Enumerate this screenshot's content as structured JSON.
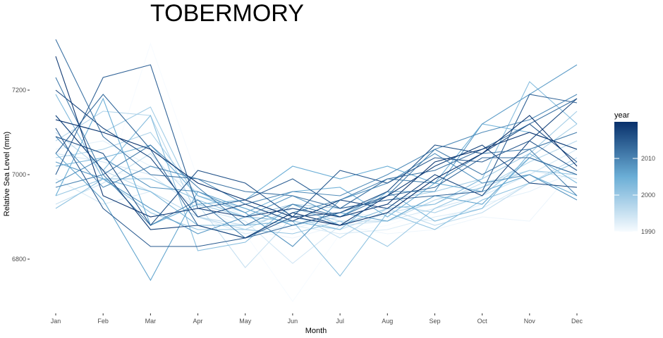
{
  "chart_data": {
    "type": "line",
    "title": "TOBERMORY",
    "xlabel": "Month",
    "ylabel": "Relative Sea Level (mm)",
    "categories": [
      "Jan",
      "Feb",
      "Mar",
      "Apr",
      "May",
      "Jun",
      "Jul",
      "Aug",
      "Sep",
      "Oct",
      "Nov",
      "Dec"
    ],
    "y_ticks": [
      6800,
      7000,
      7200
    ],
    "y_tick_labels": [
      "6800",
      "7000",
      "7200"
    ],
    "ylim": [
      6680,
      7330
    ],
    "grid": false,
    "legend": {
      "title": "year",
      "position": "right",
      "type": "colorbar",
      "range": [
        1990,
        2020
      ],
      "ticks": [
        1990,
        2000,
        2010
      ],
      "tick_labels": [
        "1990",
        "2000",
        "2010"
      ],
      "low_color": "#f7fbff",
      "high_color": "#08306b"
    },
    "series": [
      {
        "year": 1990,
        "values": [
          7000,
          6960,
          7310,
          6990,
          6860,
          6700,
          6860,
          6880,
          6920,
          6940,
          6970,
          7000
        ]
      },
      {
        "year": 1991,
        "values": [
          7020,
          7010,
          6990,
          6930,
          6870,
          6850,
          6880,
          6860,
          6870,
          6900,
          6890,
          7020
        ]
      },
      {
        "year": 1992,
        "values": [
          7060,
          7080,
          7020,
          6960,
          6900,
          6870,
          6910,
          6900,
          6890,
          6930,
          6960,
          7010
        ]
      },
      {
        "year": 1993,
        "values": [
          6990,
          6930,
          6960,
          6900,
          6860,
          6880,
          6860,
          6870,
          6900,
          6920,
          6980,
          7030
        ]
      },
      {
        "year": 1994,
        "values": [
          7050,
          7030,
          7000,
          6920,
          6890,
          6790,
          6880,
          6890,
          6920,
          6950,
          7000,
          7060
        ]
      },
      {
        "year": 1995,
        "values": [
          6930,
          6980,
          7050,
          6930,
          6780,
          6900,
          6870,
          6910,
          6930,
          6980,
          7010,
          6990
        ]
      },
      {
        "year": 1996,
        "values": [
          7100,
          7010,
          6960,
          6900,
          6880,
          6910,
          6850,
          6920,
          6880,
          6910,
          6980,
          7040
        ]
      },
      {
        "year": 1997,
        "values": [
          7080,
          7150,
          7140,
          6900,
          6870,
          6920,
          6890,
          6890,
          6940,
          6970,
          7030,
          7080
        ]
      },
      {
        "year": 1998,
        "values": [
          7040,
          7060,
          7100,
          6950,
          6920,
          6880,
          6900,
          6930,
          6910,
          6950,
          7040,
          7120
        ]
      },
      {
        "year": 1999,
        "values": [
          7130,
          7100,
          7160,
          6930,
          6900,
          6930,
          6920,
          6940,
          6960,
          6990,
          7050,
          7150
        ]
      },
      {
        "year": 2000,
        "values": [
          6950,
          6990,
          6910,
          6870,
          6870,
          6860,
          6890,
          6830,
          6920,
          6970,
          7010,
          7000
        ]
      },
      {
        "year": 2001,
        "values": [
          6920,
          6990,
          6990,
          6940,
          6900,
          6890,
          6760,
          6910,
          6870,
          6940,
          6980,
          7030
        ]
      },
      {
        "year": 2002,
        "values": [
          7140,
          7010,
          7140,
          6820,
          6840,
          6930,
          6880,
          6920,
          6930,
          6990,
          7220,
          7120
        ]
      },
      {
        "year": 2003,
        "values": [
          7190,
          6990,
          6960,
          6880,
          6880,
          6890,
          6870,
          6960,
          6890,
          6920,
          7050,
          6980
        ]
      },
      {
        "year": 2004,
        "values": [
          7020,
          7040,
          7070,
          6950,
          6910,
          6960,
          6970,
          6900,
          6980,
          7120,
          7100,
          7060
        ]
      },
      {
        "year": 2005,
        "values": [
          6950,
          7180,
          6880,
          6930,
          6940,
          7020,
          6990,
          7020,
          6980,
          6960,
          7000,
          6950
        ]
      },
      {
        "year": 2006,
        "values": [
          7050,
          6940,
          6750,
          6960,
          6920,
          6880,
          6910,
          6890,
          6950,
          6930,
          7040,
          7000
        ]
      },
      {
        "year": 2007,
        "values": [
          7030,
          6990,
          6920,
          6860,
          6900,
          6950,
          6900,
          6960,
          6960,
          7120,
          7190,
          7260
        ]
      },
      {
        "year": 2008,
        "values": [
          6980,
          7040,
          6970,
          6960,
          6910,
          6830,
          6940,
          6980,
          7050,
          6980,
          7000,
          6940
        ]
      },
      {
        "year": 2009,
        "values": [
          7090,
          6970,
          7020,
          6990,
          6930,
          6960,
          6950,
          7000,
          7060,
          7100,
          7130,
          7190
        ]
      },
      {
        "year": 2010,
        "values": [
          6970,
          7000,
          6880,
          6940,
          6850,
          6910,
          6940,
          6990,
          6980,
          7050,
          7060,
          6950
        ]
      },
      {
        "year": 2011,
        "values": [
          7230,
          7000,
          7070,
          6970,
          6880,
          6930,
          6900,
          6950,
          7060,
          7000,
          7060,
          7100
        ]
      },
      {
        "year": 2012,
        "values": [
          7320,
          7090,
          7000,
          6990,
          6960,
          6950,
          6920,
          6990,
          7010,
          7060,
          7120,
          7180
        ]
      },
      {
        "year": 2013,
        "values": [
          7050,
          7190,
          7060,
          6880,
          6850,
          6880,
          6910,
          6950,
          6970,
          7040,
          7040,
          7000
        ]
      },
      {
        "year": 2014,
        "values": [
          7000,
          7230,
          7260,
          6920,
          6940,
          6990,
          6920,
          6940,
          6950,
          6960,
          7190,
          7170
        ]
      },
      {
        "year": 2015,
        "values": [
          7110,
          6920,
          6830,
          6830,
          6850,
          6900,
          7010,
          6980,
          7040,
          7030,
          7080,
          7010
        ]
      },
      {
        "year": 2016,
        "values": [
          7090,
          7050,
          6880,
          7010,
          6980,
          6900,
          6910,
          6960,
          7070,
          7050,
          7120,
          7030
        ]
      },
      {
        "year": 2017,
        "values": [
          7200,
          7110,
          7040,
          6900,
          6930,
          6890,
          6940,
          6920,
          7000,
          6950,
          7080,
          7180
        ]
      },
      {
        "year": 2018,
        "values": [
          7140,
          7010,
          6870,
          6880,
          6850,
          6910,
          6880,
          6950,
          7020,
          7070,
          6980,
          6970
        ]
      },
      {
        "year": 2019,
        "values": [
          7280,
          6950,
          6900,
          6920,
          6900,
          6920,
          6900,
          6930,
          7030,
          7060,
          7100,
          7060
        ]
      },
      {
        "year": 2020,
        "values": [
          7130,
          7100,
          7060,
          6980,
          6940,
          6900,
          6880,
          6910,
          6990,
          7050,
          7140,
          7020
        ]
      }
    ]
  }
}
